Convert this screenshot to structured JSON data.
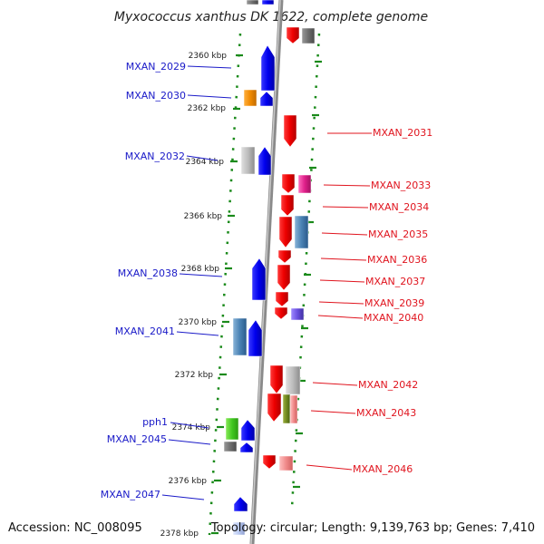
{
  "title": "Myxococcus xanthus DK 1622, complete genome",
  "accession": "Accession: NC_008095",
  "topology": "Topology: circular; Length: 9,139,763 bp; Genes: 7,410",
  "colors": {
    "left_label": "#1a1ac8",
    "right_label": "#e0141e",
    "tick": "#1a8a1a",
    "backbone": "#8a8a8a"
  },
  "ticks": [
    "2360 kbp",
    "2362 kbp",
    "2364 kbp",
    "2366 kbp",
    "2368 kbp",
    "2370 kbp",
    "2372 kbp",
    "2374 kbp",
    "2376 kbp",
    "2378 kbp"
  ],
  "left_labels": [
    "MXAN_2029",
    "MXAN_2030",
    "MXAN_2032",
    "MXAN_2038",
    "MXAN_2041",
    "pph1",
    "MXAN_2045",
    "MXAN_2047"
  ],
  "right_labels": [
    "MXAN_2031",
    "MXAN_2033",
    "MXAN_2034",
    "MXAN_2035",
    "MXAN_2036",
    "MXAN_2037",
    "MXAN_2039",
    "MXAN_2040",
    "MXAN_2042",
    "MXAN_2043",
    "MXAN_2046"
  ]
}
